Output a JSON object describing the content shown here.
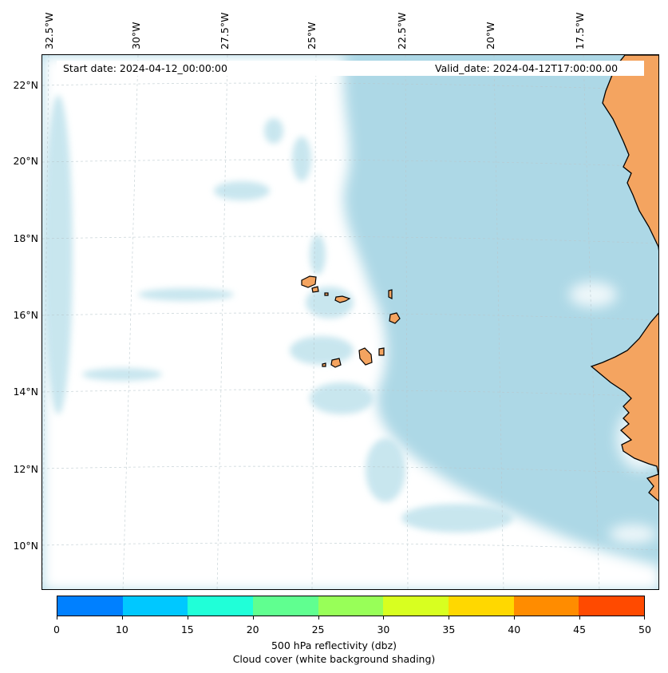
{
  "header": {
    "start_date": "Start date: 2024-04-12_00:00:00",
    "valid_date": "Valid_date: 2024-04-12T17:00:00.00"
  },
  "longitude_labels": [
    "32.5°W",
    "30°W",
    "27.5°W",
    "25°W",
    "22.5°W",
    "20°W",
    "17.5°W"
  ],
  "latitude_labels": [
    "22°N",
    "20°N",
    "18°N",
    "16°N",
    "14°N",
    "12°N",
    "10°N"
  ],
  "colorbar": {
    "ticks": [
      "0",
      "10",
      "15",
      "20",
      "25",
      "30",
      "35",
      "40",
      "45",
      "50"
    ],
    "colors": [
      "#0080ff",
      "#00c8ff",
      "#20ffd8",
      "#60ff90",
      "#98ff58",
      "#d8ff20",
      "#ffd800",
      "#ff8c00",
      "#ff4a00"
    ],
    "label": "500 hPa reflectivity (dbz)",
    "sublabel": "Cloud cover (white background shading)"
  },
  "map_colors": {
    "land": "#f4a460",
    "cloud_free": "#add8e6",
    "cloud": "#ffffff",
    "coastline": "#000000"
  }
}
